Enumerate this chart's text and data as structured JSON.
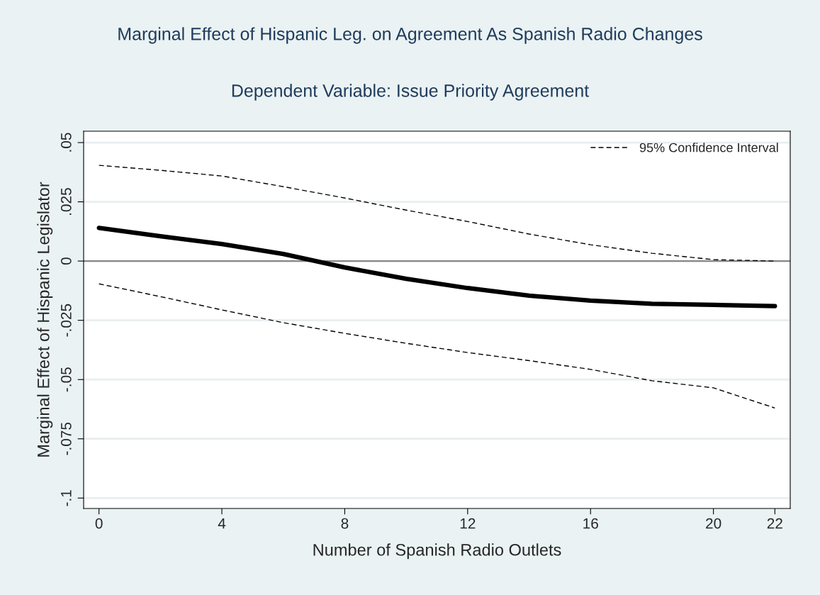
{
  "chart_data": {
    "type": "line",
    "title": "Marginal Effect of Hispanic Leg. on Agreement As Spanish Radio Changes",
    "subtitle": "Dependent Variable: Issue Priority Agreement",
    "xlabel": "Number of Spanish Radio Outlets",
    "ylabel": "Marginal Effect of Hispanic Legislator",
    "x": [
      0,
      2,
      4,
      6,
      8,
      10,
      12,
      14,
      16,
      18,
      20,
      22
    ],
    "series": [
      {
        "color": "#000000",
        "line_style": "solid",
        "values": [
          0.014,
          0.0105,
          0.0072,
          0.003,
          -0.0027,
          -0.0075,
          -0.0114,
          -0.0146,
          -0.0167,
          -0.018,
          -0.0185,
          -0.019
        ]
      },
      {
        "name": "95% Confidence Interval",
        "color": "#000000",
        "line_style": "dashed",
        "values": [
          0.0404,
          0.0383,
          0.0359,
          0.0314,
          0.0266,
          0.0215,
          0.0167,
          0.0114,
          0.0069,
          0.0033,
          0.0006,
          0.0
        ]
      },
      {
        "color": "#000000",
        "line_style": "dashed",
        "values": [
          -0.0096,
          -0.015,
          -0.0206,
          -0.026,
          -0.0305,
          -0.0347,
          -0.0386,
          -0.042,
          -0.0457,
          -0.0505,
          -0.0535,
          -0.062
        ]
      }
    ],
    "xlim": [
      -0.5,
      22.5
    ],
    "ylim": [
      -0.1044,
      0.0548
    ],
    "xticks": [
      0,
      4,
      8,
      12,
      16,
      20,
      22
    ],
    "yticks": [
      {
        "value": 0.05,
        "label": ".05"
      },
      {
        "value": 0.025,
        "label": ".025"
      },
      {
        "value": 0,
        "label": "0"
      },
      {
        "value": -0.025,
        "label": "-.025"
      },
      {
        "value": -0.05,
        "label": "-.05"
      },
      {
        "value": -0.075,
        "label": "-.075"
      },
      {
        "value": -0.1,
        "label": "-.1"
      }
    ],
    "ref_lines": [
      {
        "axis": "y",
        "value": 0,
        "color": "#888888"
      }
    ],
    "grid": "y",
    "legend": "top right"
  }
}
